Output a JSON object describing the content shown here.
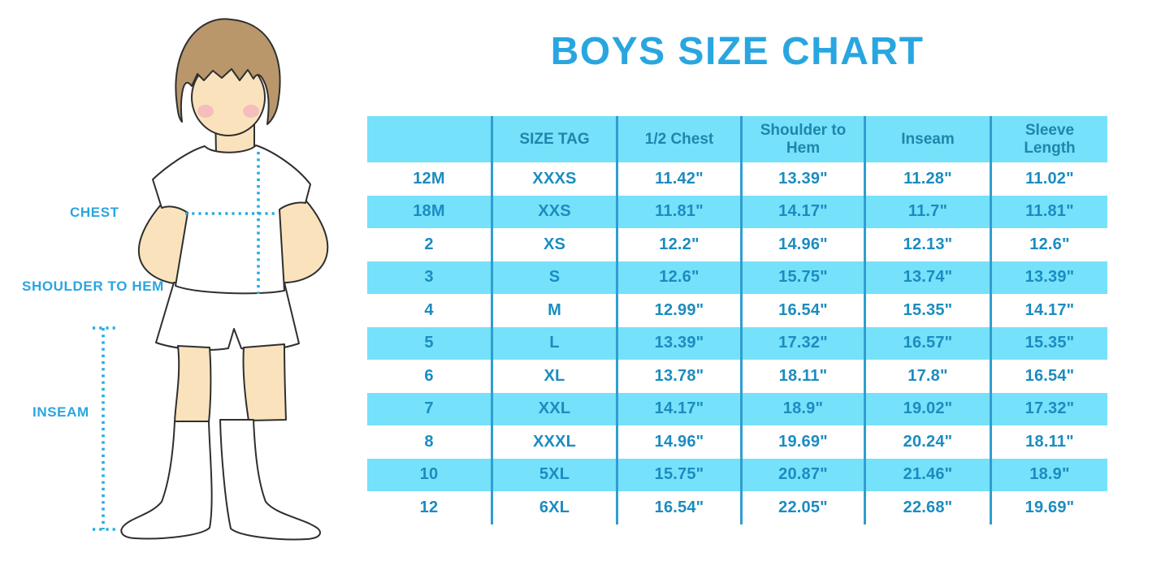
{
  "title": "BOYS SIZE CHART",
  "figure": {
    "description": "outline illustration of a boy in white t-shirt, shorts and knee socks with dotted measurement guides",
    "labels": {
      "chest": "CHEST",
      "shoulder_to_hem": "SHOULDER TO HEM",
      "inseam": "INSEAM"
    }
  },
  "colors": {
    "accent_blue": "#29A6E0",
    "table_band_cyan": "#76E1FA",
    "table_line_blue": "#2F9ED0",
    "table_cell_text": "#1B8CC0",
    "table_header_text": "#1F85AD",
    "dotted_guide": "#29ABE2",
    "skin": "#FAE3BC",
    "hair": "#B9976B",
    "blush": "#F2A3BC"
  },
  "chart_data": {
    "type": "table",
    "title": "BOYS SIZE CHART",
    "columns": [
      "",
      "SIZE TAG",
      "1/2 Chest",
      "Shoulder to Hem",
      "Inseam",
      "Sleeve Length"
    ],
    "rows": [
      [
        "12M",
        "XXXS",
        "11.42\"",
        "13.39\"",
        "11.28\"",
        "11.02\""
      ],
      [
        "18M",
        "XXS",
        "11.81\"",
        "14.17\"",
        "11.7\"",
        "11.81\""
      ],
      [
        "2",
        "XS",
        "12.2\"",
        "14.96\"",
        "12.13\"",
        "12.6\""
      ],
      [
        "3",
        "S",
        "12.6\"",
        "15.75\"",
        "13.74\"",
        "13.39\""
      ],
      [
        "4",
        "M",
        "12.99\"",
        "16.54\"",
        "15.35\"",
        "14.17\""
      ],
      [
        "5",
        "L",
        "13.39\"",
        "17.32\"",
        "16.57\"",
        "15.35\""
      ],
      [
        "6",
        "XL",
        "13.78\"",
        "18.11\"",
        "17.8\"",
        "16.54\""
      ],
      [
        "7",
        "XXL",
        "14.17\"",
        "18.9\"",
        "19.02\"",
        "17.32\""
      ],
      [
        "8",
        "XXXL",
        "14.96\"",
        "19.69\"",
        "20.24\"",
        "18.11\""
      ],
      [
        "10",
        "5XL",
        "15.75\"",
        "20.87\"",
        "21.46\"",
        "18.9\""
      ],
      [
        "12",
        "6XL",
        "16.54\"",
        "22.05\"",
        "22.68\"",
        "19.69\""
      ]
    ],
    "layout": {
      "striping": "rows alternate white and cyan starting with white; header row cyan",
      "column_separators": "vertical blue lines between all columns, no outer border",
      "legend": "none",
      "grid": "columns-only"
    }
  }
}
